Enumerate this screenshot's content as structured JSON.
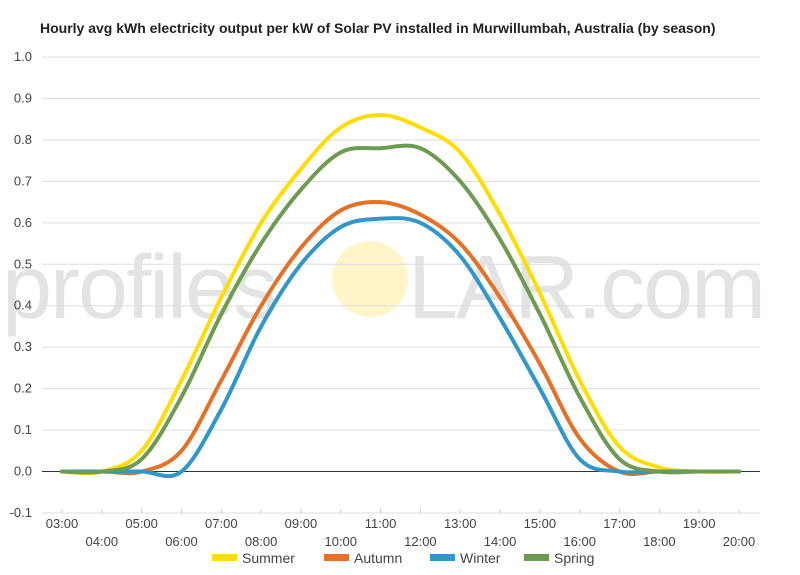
{
  "chart_data": {
    "type": "line",
    "title": "Hourly avg kWh electricity output per kW of Solar PV installed in Murwillumbah, Australia (by season)",
    "watermark": {
      "before": "profiles",
      "after": "LAR.com",
      "full": "profileSOLAR.com"
    },
    "xlabel": "",
    "ylabel": "",
    "ylim": [
      -0.1,
      1.0
    ],
    "yticks": [
      "1.0",
      "0.9",
      "0.8",
      "0.7",
      "0.6",
      "0.5",
      "0.4",
      "0.3",
      "0.2",
      "0.1",
      "0.0",
      "-0.1"
    ],
    "ytick_values": [
      1.0,
      0.9,
      0.8,
      0.7,
      0.6,
      0.5,
      0.4,
      0.3,
      0.2,
      0.1,
      0.0,
      -0.1
    ],
    "x": [
      "03:00",
      "04:00",
      "05:00",
      "06:00",
      "07:00",
      "08:00",
      "09:00",
      "10:00",
      "11:00",
      "12:00",
      "13:00",
      "14:00",
      "15:00",
      "16:00",
      "17:00",
      "18:00",
      "19:00",
      "20:00"
    ],
    "xticks_upper": [
      "03:00",
      "05:00",
      "07:00",
      "09:00",
      "11:00",
      "13:00",
      "15:00",
      "17:00",
      "19:00"
    ],
    "xticks_lower": [
      "04:00",
      "06:00",
      "08:00",
      "10:00",
      "12:00",
      "14:00",
      "16:00",
      "18:00",
      "20:00"
    ],
    "grid": true,
    "legend_position": "bottom",
    "series": [
      {
        "name": "Summer",
        "color": "#ffdd00",
        "values": [
          0.0,
          0.0,
          0.05,
          0.22,
          0.42,
          0.6,
          0.73,
          0.83,
          0.86,
          0.83,
          0.77,
          0.62,
          0.43,
          0.22,
          0.06,
          0.01,
          0.0,
          0.0
        ]
      },
      {
        "name": "Autumn",
        "color": "#e47125",
        "values": [
          0.0,
          0.0,
          0.0,
          0.05,
          0.22,
          0.4,
          0.54,
          0.63,
          0.65,
          0.62,
          0.55,
          0.42,
          0.26,
          0.08,
          0.0,
          0.0,
          0.0,
          0.0
        ]
      },
      {
        "name": "Winter",
        "color": "#2f97c9",
        "values": [
          0.0,
          0.0,
          0.0,
          0.0,
          0.15,
          0.35,
          0.5,
          0.59,
          0.61,
          0.6,
          0.52,
          0.37,
          0.2,
          0.03,
          0.0,
          0.0,
          0.0,
          0.0
        ]
      },
      {
        "name": "Spring",
        "color": "#6d9b4f",
        "values": [
          0.0,
          0.0,
          0.03,
          0.18,
          0.38,
          0.55,
          0.68,
          0.77,
          0.78,
          0.78,
          0.7,
          0.56,
          0.38,
          0.18,
          0.03,
          0.0,
          0.0,
          0.0
        ]
      }
    ]
  }
}
